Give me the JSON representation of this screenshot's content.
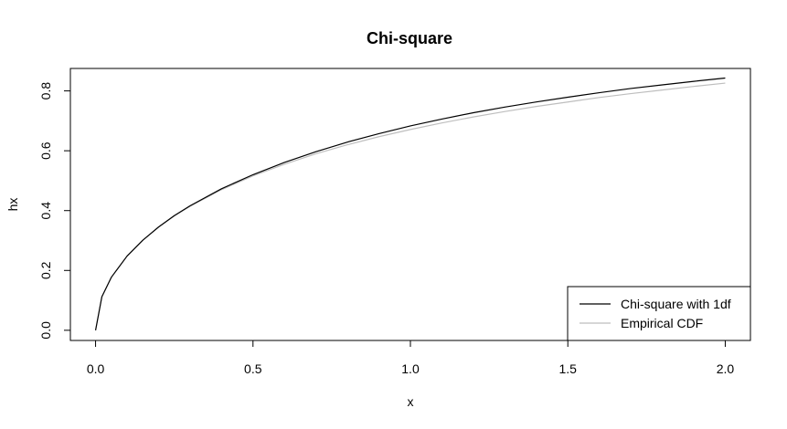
{
  "chart_data": {
    "type": "line",
    "title": "Chi-square",
    "xlabel": "x",
    "ylabel": "hx",
    "xlim": [
      -0.08,
      2.08
    ],
    "ylim": [
      -0.034,
      0.875
    ],
    "x_ticks": [
      "0.0",
      "0.5",
      "1.0",
      "1.5",
      "2.0"
    ],
    "x_tick_values": [
      0,
      0.5,
      1.0,
      1.5,
      2.0
    ],
    "y_ticks": [
      "0.0",
      "0.2",
      "0.4",
      "0.6",
      "0.8"
    ],
    "y_tick_values": [
      0,
      0.2,
      0.4,
      0.6,
      0.8
    ],
    "grid": false,
    "legend_position": "bottom-right",
    "series": [
      {
        "name": "Chi-square with 1df",
        "color": "#000000",
        "x": [
          0,
          0.02,
          0.05,
          0.1,
          0.15,
          0.2,
          0.25,
          0.3,
          0.4,
          0.5,
          0.6,
          0.7,
          0.8,
          0.9,
          1.0,
          1.1,
          1.2,
          1.3,
          1.4,
          1.5,
          1.6,
          1.7,
          1.8,
          1.9,
          2.0
        ],
        "y": [
          0,
          0.112,
          0.177,
          0.248,
          0.301,
          0.345,
          0.383,
          0.416,
          0.473,
          0.52,
          0.561,
          0.597,
          0.629,
          0.657,
          0.683,
          0.706,
          0.727,
          0.746,
          0.763,
          0.779,
          0.794,
          0.808,
          0.82,
          0.832,
          0.843
        ]
      },
      {
        "name": "Empirical CDF",
        "color": "#bebebe",
        "x": [
          0,
          0.02,
          0.05,
          0.1,
          0.15,
          0.2,
          0.25,
          0.3,
          0.4,
          0.5,
          0.6,
          0.7,
          0.8,
          0.9,
          1.0,
          1.1,
          1.2,
          1.3,
          1.4,
          1.5,
          1.6,
          1.7,
          1.8,
          1.9,
          2.0
        ],
        "y": [
          0,
          0.112,
          0.177,
          0.248,
          0.301,
          0.345,
          0.382,
          0.414,
          0.47,
          0.516,
          0.555,
          0.59,
          0.62,
          0.647,
          0.671,
          0.693,
          0.713,
          0.731,
          0.748,
          0.763,
          0.778,
          0.791,
          0.803,
          0.815,
          0.826
        ]
      }
    ]
  }
}
